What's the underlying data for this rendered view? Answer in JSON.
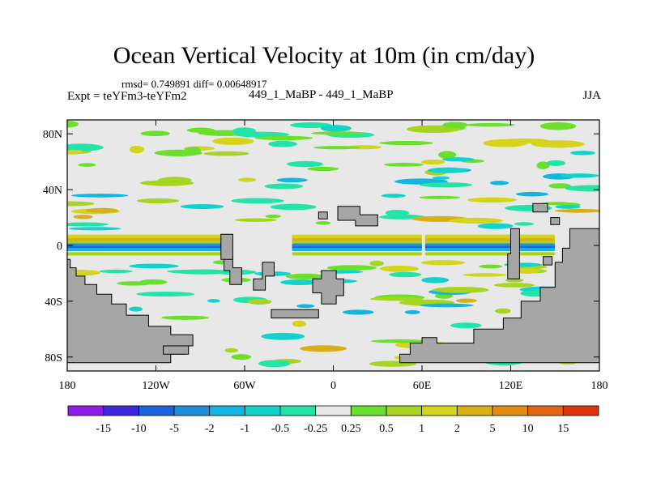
{
  "title": "Ocean Vertical Velocity at 10m (in cm/day)",
  "stats_line": "rmsd= 0.749891 diff= 0.00648917",
  "expt_line": "Expt = teYFm3-teYFm2",
  "center_label": "449_1_MaBP - 449_1_MaBP",
  "season": "JJA",
  "y_axis": {
    "labels": [
      "80N",
      "40N",
      "0",
      "40S",
      "80S"
    ],
    "values": [
      80,
      40,
      0,
      -40,
      -80
    ]
  },
  "x_axis": {
    "labels": [
      "180",
      "120W",
      "60W",
      "0",
      "60E",
      "120E",
      "180"
    ],
    "values": [
      -180,
      -120,
      -60,
      0,
      60,
      120,
      180
    ]
  },
  "colorbar": {
    "labels": [
      "-15",
      "-10",
      "-5",
      "-2",
      "-1",
      "-0.5",
      "-0.25",
      "0.25",
      "0.5",
      "1",
      "2",
      "5",
      "10",
      "15"
    ],
    "colors": [
      "#8b1fe8",
      "#3d28e0",
      "#1e62e0",
      "#1e8ee0",
      "#12b4e0",
      "#12d2cc",
      "#23e4a8",
      "#e8e8e8",
      "#6ae02a",
      "#a6d420",
      "#d4d41c",
      "#d8b014",
      "#e48c10",
      "#e46414",
      "#e03410"
    ]
  },
  "land_color": "#a6a6a6",
  "missing_color": "#e8e8e8"
}
